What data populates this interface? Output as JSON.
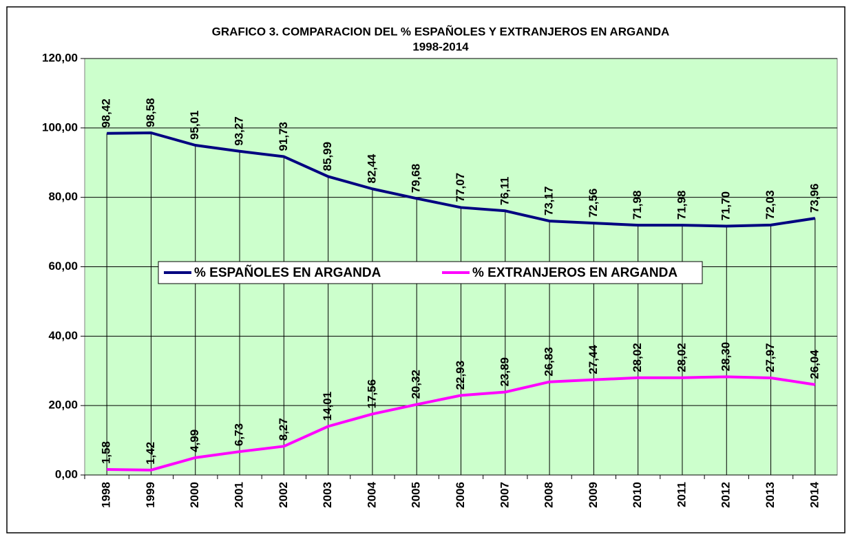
{
  "chart_data": {
    "type": "line",
    "title": "GRAFICO 3. COMPARACION DEL % ESPAÑOLES Y EXTRANJEROS EN ARGANDA",
    "subtitle": "1998-2014",
    "categories": [
      "1998",
      "1999",
      "2000",
      "2001",
      "2002",
      "2003",
      "2004",
      "2005",
      "2006",
      "2007",
      "2008",
      "2009",
      "2010",
      "2011",
      "2012",
      "2013",
      "2014"
    ],
    "series": [
      {
        "name": "% ESPAÑOLES EN ARGANDA",
        "color": "#000080",
        "values": [
          98.42,
          98.58,
          95.01,
          93.27,
          91.73,
          85.99,
          82.44,
          79.68,
          77.07,
          76.11,
          73.17,
          72.56,
          71.98,
          71.98,
          71.7,
          72.03,
          73.96
        ],
        "value_labels": [
          "98,42",
          "98,58",
          "95,01",
          "93,27",
          "91,73",
          "85,99",
          "82,44",
          "79,68",
          "77,07",
          "76,11",
          "73,17",
          "72,56",
          "71,98",
          "71,98",
          "71,70",
          "72,03",
          "73,96"
        ]
      },
      {
        "name": "% EXTRANJEROS EN ARGANDA",
        "color": "#ff00ff",
        "values": [
          1.58,
          1.42,
          4.99,
          6.73,
          8.27,
          14.01,
          17.56,
          20.32,
          22.93,
          23.89,
          26.83,
          27.44,
          28.02,
          28.02,
          28.3,
          27.97,
          26.04
        ],
        "value_labels": [
          "1,58",
          "1,42",
          "4,99",
          "6,73",
          "8,27",
          "14,01",
          "17,56",
          "20,32",
          "22,93",
          "23,89",
          "26,83",
          "27,44",
          "28,02",
          "28,02",
          "28,30",
          "27,97",
          "26,04"
        ]
      }
    ],
    "ylim": [
      0,
      120
    ],
    "yticks": [
      {
        "value": 0,
        "label": "0,00"
      },
      {
        "value": 20,
        "label": "20,00"
      },
      {
        "value": 40,
        "label": "40,00"
      },
      {
        "value": 60,
        "label": "60,00"
      },
      {
        "value": 80,
        "label": "80,00"
      },
      {
        "value": 100,
        "label": "100,00"
      },
      {
        "value": 120,
        "label": "120,00"
      }
    ],
    "grid": true,
    "drop_lines": true,
    "plot_background": "#ccffcc",
    "legend": "center"
  }
}
